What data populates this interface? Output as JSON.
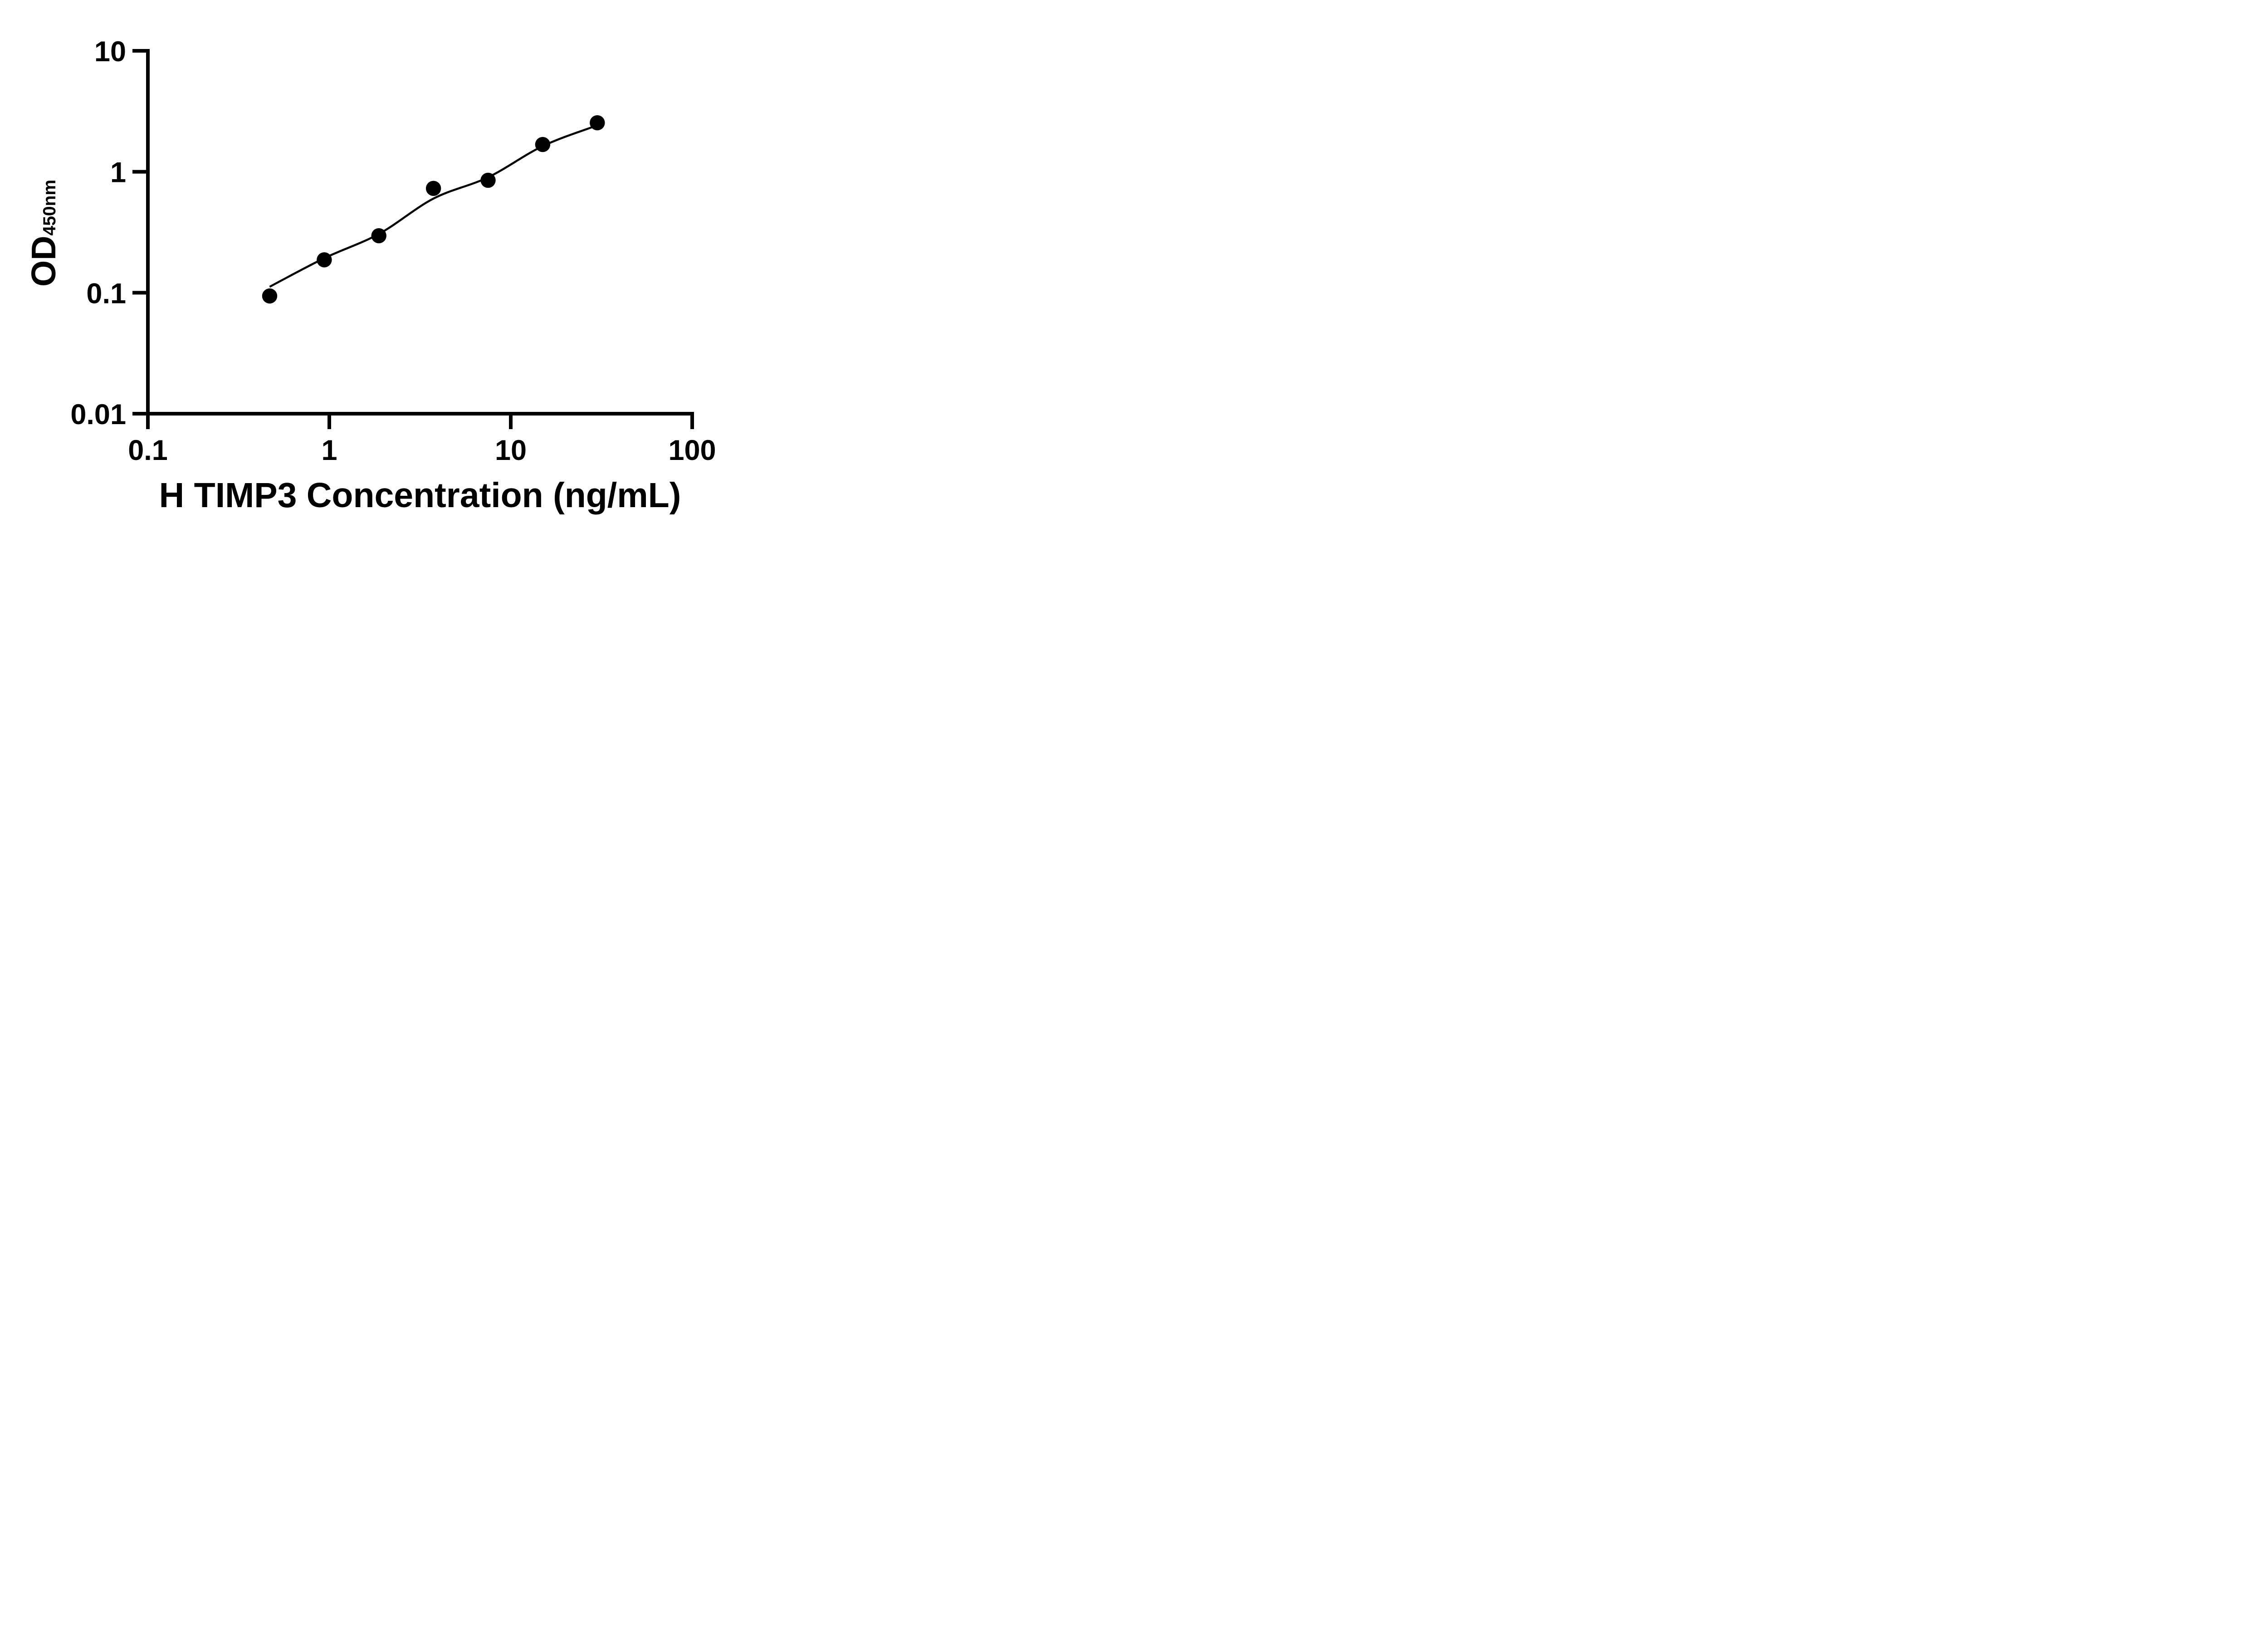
{
  "figure": {
    "background": "#ffffff",
    "ink_color": "#000000"
  },
  "chart_data": {
    "type": "scatter",
    "subtype": "elisa-standard-curve",
    "title": "",
    "xlabel": "H TIMP3 Concentration (ng/mL)",
    "ylabel_main": "OD",
    "ylabel_sub": "450nm",
    "x_scale": "log10",
    "y_scale": "log10",
    "xlim": [
      0.1,
      100
    ],
    "ylim": [
      0.01,
      10
    ],
    "grid": "off",
    "legend": "none",
    "x_ticks": [
      {
        "value": 0.1,
        "label": "0.1"
      },
      {
        "value": 1,
        "label": "1"
      },
      {
        "value": 10,
        "label": "10"
      },
      {
        "value": 100,
        "label": "100"
      }
    ],
    "y_ticks": [
      {
        "value": 10,
        "label": "10"
      },
      {
        "value": 1,
        "label": "1"
      },
      {
        "value": 0.1,
        "label": "0.1"
      },
      {
        "value": 0.01,
        "label": "0.01"
      }
    ],
    "series": [
      {
        "name": "standard-points",
        "marker": "filled-circle",
        "marker_color": "#000000",
        "x": [
          0.469,
          0.938,
          1.875,
          3.75,
          7.5,
          15,
          30
        ],
        "y": [
          0.094,
          0.187,
          0.296,
          0.729,
          0.851,
          1.68,
          2.54
        ]
      }
    ],
    "fit_curve": {
      "name": "four-parameter-fit",
      "line_color": "#000000",
      "x": [
        0.469,
        0.938,
        1.875,
        3.75,
        7.5,
        15,
        30
      ],
      "y": [
        0.112,
        0.193,
        0.306,
        0.6,
        0.9,
        1.63,
        2.42
      ]
    }
  }
}
